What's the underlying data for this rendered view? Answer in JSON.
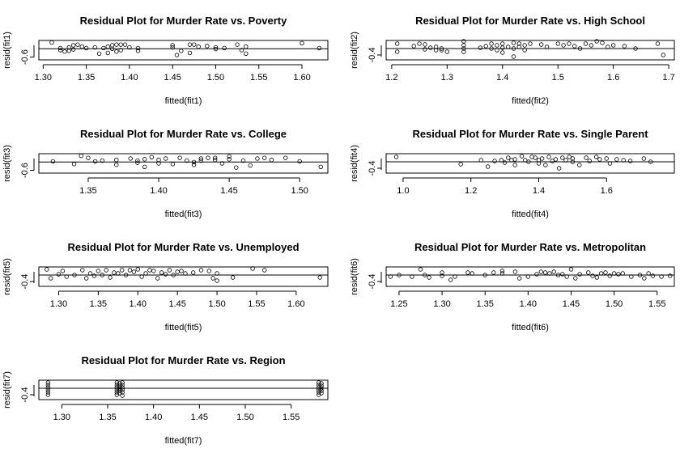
{
  "chart_data": [
    {
      "type": "scatter",
      "title": "Residual Plot for Murder Rate vs. Poverty",
      "xlabel": "fitted(fit1)",
      "ylabel": "resid(fit1)",
      "xlim": [
        1.295,
        1.63
      ],
      "ylim": [
        -0.8,
        0.6
      ],
      "xticks": [
        1.3,
        1.35,
        1.4,
        1.45,
        1.5,
        1.55,
        1.6
      ],
      "xtick_labels": [
        "1.30",
        "1.35",
        "1.40",
        "1.45",
        "1.50",
        "1.55",
        "1.60"
      ],
      "yticks": [
        -0.6
      ],
      "ytick_labels": [
        "-0.6"
      ],
      "hline": 0,
      "points": [
        [
          1.31,
          0.45
        ],
        [
          1.32,
          -0.1
        ],
        [
          1.32,
          0.05
        ],
        [
          1.325,
          -0.2
        ],
        [
          1.33,
          0.1
        ],
        [
          1.33,
          -0.15
        ],
        [
          1.335,
          0.25
        ],
        [
          1.335,
          -0.05
        ],
        [
          1.34,
          0.3
        ],
        [
          1.345,
          0.15
        ],
        [
          1.35,
          0.05
        ],
        [
          1.36,
          0.1
        ],
        [
          1.365,
          -0.35
        ],
        [
          1.37,
          0.05
        ],
        [
          1.375,
          -0.3
        ],
        [
          1.375,
          0.15
        ],
        [
          1.38,
          0.25
        ],
        [
          1.38,
          0.0
        ],
        [
          1.385,
          0.3
        ],
        [
          1.385,
          -0.2
        ],
        [
          1.39,
          0.3
        ],
        [
          1.39,
          -0.1
        ],
        [
          1.395,
          0.3
        ],
        [
          1.4,
          0.1
        ],
        [
          1.41,
          0.05
        ],
        [
          1.41,
          -0.15
        ],
        [
          1.45,
          0.25
        ],
        [
          1.45,
          0.1
        ],
        [
          1.455,
          -0.45
        ],
        [
          1.46,
          -0.15
        ],
        [
          1.47,
          0.3
        ],
        [
          1.47,
          -0.3
        ],
        [
          1.475,
          0.3
        ],
        [
          1.48,
          0.15
        ],
        [
          1.49,
          0.2
        ],
        [
          1.5,
          0.1
        ],
        [
          1.5,
          -0.02
        ],
        [
          1.51,
          0.05
        ],
        [
          1.525,
          0.3
        ],
        [
          1.53,
          -0.1
        ],
        [
          1.535,
          -0.35
        ],
        [
          1.535,
          0.15
        ],
        [
          1.6,
          0.4
        ],
        [
          1.62,
          0.05
        ]
      ]
    },
    {
      "type": "scatter",
      "title": "Residual Plot for Murder Rate vs. High School",
      "xlabel": "fitted(fit2)",
      "ylabel": "resid(fit2)",
      "xlim": [
        1.19,
        1.71
      ],
      "ylim": [
        -0.7,
        0.5
      ],
      "xticks": [
        1.2,
        1.3,
        1.4,
        1.5,
        1.6,
        1.7
      ],
      "xtick_labels": [
        "1.2",
        "1.3",
        "1.4",
        "1.5",
        "1.6",
        "1.7"
      ],
      "yticks": [
        -0.4
      ],
      "ytick_labels": [
        "-0.4"
      ],
      "hline": 0,
      "points": [
        [
          1.21,
          0.3
        ],
        [
          1.21,
          -0.2
        ],
        [
          1.24,
          0.15
        ],
        [
          1.25,
          0.3
        ],
        [
          1.26,
          -0.05
        ],
        [
          1.26,
          0.25
        ],
        [
          1.27,
          0.05
        ],
        [
          1.28,
          -0.1
        ],
        [
          1.28,
          0.1
        ],
        [
          1.29,
          0.0
        ],
        [
          1.29,
          -0.1
        ],
        [
          1.3,
          -0.2
        ],
        [
          1.33,
          0.45
        ],
        [
          1.33,
          0.2
        ],
        [
          1.33,
          0.0
        ],
        [
          1.33,
          -0.2
        ],
        [
          1.36,
          0.05
        ],
        [
          1.37,
          0.15
        ],
        [
          1.38,
          0.3
        ],
        [
          1.38,
          0.0
        ],
        [
          1.39,
          0.2
        ],
        [
          1.39,
          -0.1
        ],
        [
          1.4,
          0.3
        ],
        [
          1.4,
          0.05
        ],
        [
          1.4,
          -0.25
        ],
        [
          1.41,
          0.1
        ],
        [
          1.42,
          0.35
        ],
        [
          1.42,
          0.0
        ],
        [
          1.42,
          -0.5
        ],
        [
          1.43,
          0.3
        ],
        [
          1.43,
          0.1
        ],
        [
          1.44,
          0.2
        ],
        [
          1.44,
          -0.1
        ],
        [
          1.45,
          0.3
        ],
        [
          1.47,
          0.25
        ],
        [
          1.48,
          0.1
        ],
        [
          1.5,
          0.3
        ],
        [
          1.51,
          0.2
        ],
        [
          1.52,
          0.3
        ],
        [
          1.53,
          0.15
        ],
        [
          1.54,
          0.0
        ],
        [
          1.55,
          0.3
        ],
        [
          1.56,
          0.2
        ],
        [
          1.57,
          0.45
        ],
        [
          1.58,
          0.35
        ],
        [
          1.59,
          0.1
        ],
        [
          1.6,
          0.2
        ],
        [
          1.62,
          0.15
        ],
        [
          1.64,
          0.0
        ],
        [
          1.68,
          0.3
        ],
        [
          1.69,
          -0.4
        ]
      ]
    },
    {
      "type": "scatter",
      "title": "Residual Plot for Murder Rate vs. College",
      "xlabel": "fitted(fit3)",
      "ylabel": "resid(fit3)",
      "xlim": [
        1.315,
        1.52
      ],
      "ylim": [
        -0.8,
        0.6
      ],
      "xticks": [
        1.35,
        1.4,
        1.45,
        1.5
      ],
      "xtick_labels": [
        "1.35",
        "1.40",
        "1.45",
        "1.50"
      ],
      "yticks": [
        -0.6
      ],
      "ytick_labels": [
        "-0.6"
      ],
      "hline": 0,
      "points": [
        [
          1.325,
          0.05
        ],
        [
          1.34,
          -0.15
        ],
        [
          1.345,
          0.45
        ],
        [
          1.35,
          0.3
        ],
        [
          1.355,
          0.05
        ],
        [
          1.36,
          0.1
        ],
        [
          1.37,
          0.15
        ],
        [
          1.37,
          -0.2
        ],
        [
          1.38,
          0.25
        ],
        [
          1.385,
          0.1
        ],
        [
          1.385,
          -0.05
        ],
        [
          1.39,
          0.2
        ],
        [
          1.39,
          -0.35
        ],
        [
          1.395,
          0.35
        ],
        [
          1.4,
          0.15
        ],
        [
          1.4,
          -0.1
        ],
        [
          1.405,
          0.25
        ],
        [
          1.41,
          -0.15
        ],
        [
          1.415,
          0.3
        ],
        [
          1.42,
          0.1
        ],
        [
          1.425,
          0.0
        ],
        [
          1.425,
          -0.2
        ],
        [
          1.43,
          0.25
        ],
        [
          1.43,
          0.1
        ],
        [
          1.435,
          0.3
        ],
        [
          1.44,
          0.3
        ],
        [
          1.44,
          0.15
        ],
        [
          1.445,
          -0.1
        ],
        [
          1.45,
          0.4
        ],
        [
          1.45,
          0.2
        ],
        [
          1.455,
          -0.4
        ],
        [
          1.46,
          0.1
        ],
        [
          1.465,
          -0.25
        ],
        [
          1.47,
          0.25
        ],
        [
          1.475,
          0.3
        ],
        [
          1.48,
          0.15
        ],
        [
          1.49,
          0.3
        ],
        [
          1.5,
          0.05
        ],
        [
          1.515,
          -0.35
        ]
      ]
    },
    {
      "type": "scatter",
      "title": "Residual Plot for Murder Rate vs. Single Parent",
      "xlabel": "fitted(fit4)",
      "ylabel": "resid(fit4)",
      "xlim": [
        0.95,
        1.8
      ],
      "ylim": [
        -0.7,
        0.5
      ],
      "xticks": [
        1.0,
        1.2,
        1.4,
        1.6
      ],
      "xtick_labels": [
        "1.0",
        "1.2",
        "1.4",
        "1.6"
      ],
      "yticks": [
        -0.4
      ],
      "ytick_labels": [
        "-0.4"
      ],
      "hline": 0,
      "points": [
        [
          0.98,
          0.3
        ],
        [
          1.17,
          -0.15
        ],
        [
          1.23,
          0.1
        ],
        [
          1.25,
          -0.3
        ],
        [
          1.27,
          0.05
        ],
        [
          1.29,
          0.1
        ],
        [
          1.3,
          -0.05
        ],
        [
          1.31,
          0.25
        ],
        [
          1.32,
          0.1
        ],
        [
          1.33,
          -0.2
        ],
        [
          1.33,
          0.15
        ],
        [
          1.35,
          0.35
        ],
        [
          1.36,
          0.1
        ],
        [
          1.37,
          0.0
        ],
        [
          1.38,
          0.3
        ],
        [
          1.39,
          0.25
        ],
        [
          1.4,
          -0.1
        ],
        [
          1.4,
          0.1
        ],
        [
          1.41,
          0.2
        ],
        [
          1.42,
          -0.2
        ],
        [
          1.43,
          0.3
        ],
        [
          1.44,
          0.05
        ],
        [
          1.45,
          0.15
        ],
        [
          1.46,
          -0.4
        ],
        [
          1.47,
          0.25
        ],
        [
          1.48,
          0.1
        ],
        [
          1.49,
          0.3
        ],
        [
          1.5,
          0.0
        ],
        [
          1.5,
          0.2
        ],
        [
          1.52,
          -0.2
        ],
        [
          1.54,
          0.25
        ],
        [
          1.55,
          0.05
        ],
        [
          1.57,
          0.3
        ],
        [
          1.58,
          0.15
        ],
        [
          1.6,
          0.2
        ],
        [
          1.61,
          -0.1
        ],
        [
          1.63,
          0.15
        ],
        [
          1.65,
          0.1
        ],
        [
          1.67,
          0.05
        ],
        [
          1.71,
          0.2
        ],
        [
          1.73,
          0.0
        ]
      ]
    },
    {
      "type": "scatter",
      "title": "Residual Plot for Murder Rate vs. Unemployed",
      "xlabel": "fitted(fit5)",
      "ylabel": "resid(fit5)",
      "xlim": [
        1.275,
        1.64
      ],
      "ylim": [
        -0.7,
        0.5
      ],
      "xticks": [
        1.3,
        1.35,
        1.4,
        1.45,
        1.5,
        1.55,
        1.6
      ],
      "xtick_labels": [
        "1.30",
        "1.35",
        "1.40",
        "1.45",
        "1.50",
        "1.55",
        "1.60"
      ],
      "yticks": [
        -0.4
      ],
      "ytick_labels": [
        "-0.4"
      ],
      "hline": 0,
      "points": [
        [
          1.285,
          0.35
        ],
        [
          1.29,
          -0.2
        ],
        [
          1.3,
          0.05
        ],
        [
          1.305,
          0.25
        ],
        [
          1.31,
          -0.1
        ],
        [
          1.32,
          0.0
        ],
        [
          1.33,
          0.3
        ],
        [
          1.335,
          -0.2
        ],
        [
          1.34,
          0.1
        ],
        [
          1.345,
          -0.05
        ],
        [
          1.35,
          0.25
        ],
        [
          1.355,
          0.0
        ],
        [
          1.36,
          0.3
        ],
        [
          1.365,
          -0.15
        ],
        [
          1.37,
          0.15
        ],
        [
          1.375,
          0.1
        ],
        [
          1.38,
          0.3
        ],
        [
          1.385,
          0.0
        ],
        [
          1.39,
          0.3
        ],
        [
          1.395,
          0.2
        ],
        [
          1.4,
          0.35
        ],
        [
          1.405,
          -0.1
        ],
        [
          1.41,
          0.1
        ],
        [
          1.415,
          0.3
        ],
        [
          1.42,
          0.25
        ],
        [
          1.425,
          -0.2
        ],
        [
          1.43,
          0.15
        ],
        [
          1.435,
          0.05
        ],
        [
          1.44,
          0.3
        ],
        [
          1.445,
          0.0
        ],
        [
          1.45,
          0.2
        ],
        [
          1.455,
          0.25
        ],
        [
          1.46,
          0.1
        ],
        [
          1.47,
          0.15
        ],
        [
          1.48,
          0.3
        ],
        [
          1.49,
          0.25
        ],
        [
          1.495,
          -0.2
        ],
        [
          1.5,
          -0.35
        ],
        [
          1.5,
          0.1
        ],
        [
          1.52,
          -0.15
        ],
        [
          1.545,
          0.4
        ],
        [
          1.56,
          0.3
        ],
        [
          1.63,
          -0.15
        ]
      ]
    },
    {
      "type": "scatter",
      "title": "Residual Plot for Murder Rate vs. Metropolitan",
      "xlabel": "fitted(fit6)",
      "ylabel": "resid(fit6)",
      "xlim": [
        1.235,
        1.57
      ],
      "ylim": [
        -0.7,
        0.5
      ],
      "xticks": [
        1.25,
        1.3,
        1.35,
        1.4,
        1.45,
        1.5,
        1.55
      ],
      "xtick_labels": [
        "1.25",
        "1.30",
        "1.35",
        "1.40",
        "1.45",
        "1.50",
        "1.55"
      ],
      "yticks": [
        -0.4
      ],
      "ytick_labels": [
        "-0.4"
      ],
      "hline": 0,
      "points": [
        [
          1.24,
          -0.1
        ],
        [
          1.25,
          0.0
        ],
        [
          1.265,
          -0.1
        ],
        [
          1.275,
          0.35
        ],
        [
          1.28,
          0.0
        ],
        [
          1.285,
          -0.15
        ],
        [
          1.3,
          0.15
        ],
        [
          1.3,
          -0.05
        ],
        [
          1.31,
          -0.3
        ],
        [
          1.315,
          -0.1
        ],
        [
          1.33,
          0.15
        ],
        [
          1.335,
          0.1
        ],
        [
          1.35,
          0.0
        ],
        [
          1.36,
          0.15
        ],
        [
          1.37,
          0.25
        ],
        [
          1.37,
          0.1
        ],
        [
          1.385,
          0.2
        ],
        [
          1.39,
          -0.2
        ],
        [
          1.4,
          -0.1
        ],
        [
          1.41,
          0.05
        ],
        [
          1.415,
          0.2
        ],
        [
          1.42,
          0.15
        ],
        [
          1.425,
          0.1
        ],
        [
          1.43,
          0.2
        ],
        [
          1.435,
          0.0
        ],
        [
          1.44,
          0.05
        ],
        [
          1.445,
          -0.1
        ],
        [
          1.45,
          0.35
        ],
        [
          1.455,
          -0.2
        ],
        [
          1.46,
          0.05
        ],
        [
          1.47,
          0.15
        ],
        [
          1.475,
          -0.05
        ],
        [
          1.48,
          -0.15
        ],
        [
          1.485,
          0.1
        ],
        [
          1.49,
          0.15
        ],
        [
          1.495,
          -0.05
        ],
        [
          1.5,
          0.1
        ],
        [
          1.505,
          0.05
        ],
        [
          1.51,
          0.1
        ],
        [
          1.52,
          -0.1
        ],
        [
          1.53,
          0.0
        ],
        [
          1.535,
          -0.2
        ],
        [
          1.54,
          0.1
        ],
        [
          1.545,
          -0.05
        ],
        [
          1.555,
          -0.1
        ],
        [
          1.565,
          -0.05
        ]
      ]
    },
    {
      "type": "scatter",
      "title": "Residual Plot for Murder Rate vs. Region",
      "xlabel": "fitted(fit7)",
      "ylabel": "resid(fit7)",
      "xlim": [
        1.275,
        1.59
      ],
      "ylim": [
        -0.7,
        0.5
      ],
      "xticks": [
        1.3,
        1.35,
        1.4,
        1.45,
        1.5,
        1.55
      ],
      "xtick_labels": [
        "1.30",
        "1.35",
        "1.40",
        "1.45",
        "1.50",
        "1.55"
      ],
      "yticks": [
        -0.4
      ],
      "ytick_labels": [
        "-0.4"
      ],
      "hline": 0,
      "points": [
        [
          1.285,
          0.35
        ],
        [
          1.285,
          0.2
        ],
        [
          1.285,
          0.05
        ],
        [
          1.285,
          -0.1
        ],
        [
          1.285,
          -0.25
        ],
        [
          1.285,
          -0.4
        ],
        [
          1.36,
          0.35
        ],
        [
          1.36,
          0.2
        ],
        [
          1.36,
          0.05
        ],
        [
          1.36,
          -0.1
        ],
        [
          1.36,
          -0.25
        ],
        [
          1.36,
          -0.4
        ],
        [
          1.363,
          0.3
        ],
        [
          1.363,
          0.15
        ],
        [
          1.363,
          0.0
        ],
        [
          1.363,
          -0.15
        ],
        [
          1.363,
          -0.3
        ],
        [
          1.366,
          0.35
        ],
        [
          1.366,
          0.2
        ],
        [
          1.366,
          0.05
        ],
        [
          1.366,
          -0.1
        ],
        [
          1.366,
          -0.25
        ],
        [
          1.366,
          -0.45
        ],
        [
          1.58,
          0.35
        ],
        [
          1.58,
          0.2
        ],
        [
          1.58,
          0.05
        ],
        [
          1.58,
          -0.1
        ],
        [
          1.58,
          -0.25
        ],
        [
          1.58,
          -0.4
        ],
        [
          1.583,
          0.3
        ],
        [
          1.583,
          0.15
        ],
        [
          1.583,
          0.0
        ],
        [
          1.583,
          -0.15
        ],
        [
          1.583,
          -0.3
        ]
      ]
    }
  ]
}
